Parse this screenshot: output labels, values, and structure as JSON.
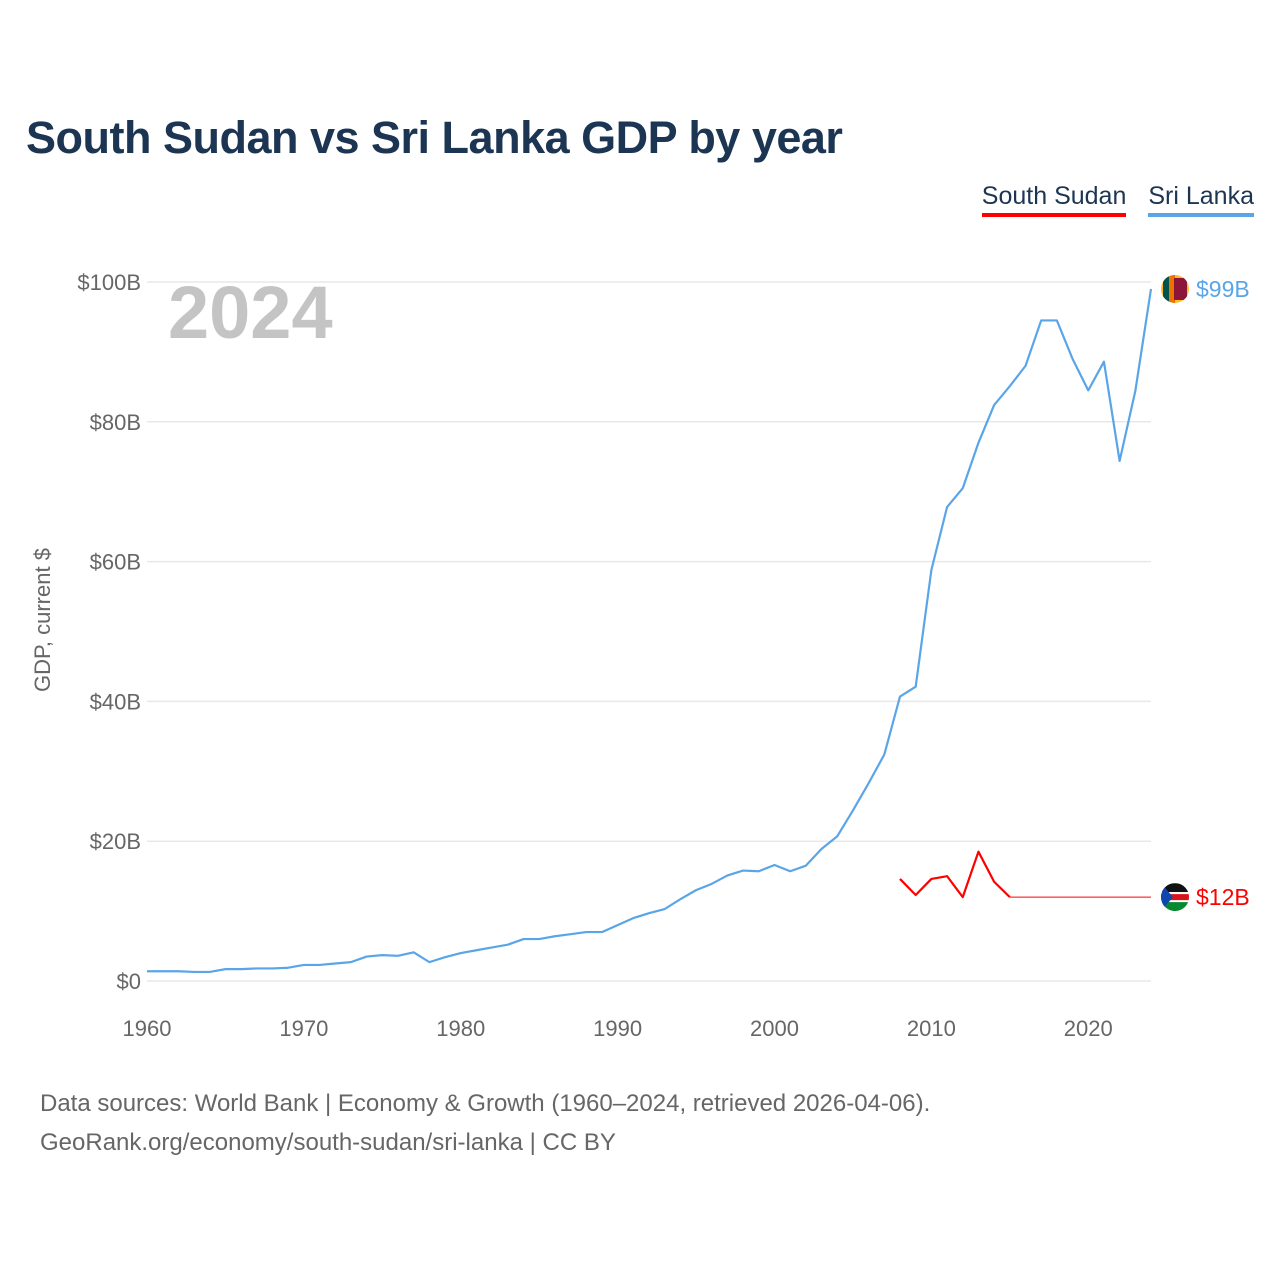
{
  "title": "South Sudan vs Sri Lanka GDP by year",
  "footer": {
    "line1": "Data sources: World Bank | Economy & Growth (1960–2024, retrieved 2026-04-06).",
    "line2": "GeoRank.org/economy/south-sudan/sri-lanka | CC BY"
  },
  "chart_data": {
    "type": "line",
    "title": "South Sudan vs Sri Lanka GDP by year",
    "xlabel": "",
    "ylabel": "GDP, current $",
    "year_label": "2024",
    "xlim": [
      1960,
      2024
    ],
    "ylim": [
      0,
      100
    ],
    "x_ticks": [
      1960,
      1970,
      1980,
      1990,
      2000,
      2010,
      2020
    ],
    "y_ticks": [
      0,
      20,
      40,
      60,
      80,
      100
    ],
    "y_tick_labels": [
      "$0",
      "$20B",
      "$40B",
      "$60B",
      "$80B",
      "$100B"
    ],
    "grid": true,
    "legend_position": "top-right",
    "units": "billion USD",
    "series": [
      {
        "name": "South Sudan",
        "color": "#ff0000",
        "end_label": "$12B",
        "flag": "south-sudan-flag",
        "x": [
          2008,
          2009,
          2010,
          2011,
          2012,
          2013,
          2014,
          2015
        ],
        "values": [
          14.6,
          12.3,
          14.6,
          15.0,
          12.0,
          18.5,
          14.2,
          12.0
        ],
        "carried_to": 2024
      },
      {
        "name": "Sri Lanka",
        "color": "#5aa5e8",
        "end_label": "$99B",
        "flag": "sri-lanka-flag",
        "x": [
          1960,
          1961,
          1962,
          1963,
          1964,
          1965,
          1966,
          1967,
          1968,
          1969,
          1970,
          1971,
          1972,
          1973,
          1974,
          1975,
          1976,
          1977,
          1978,
          1979,
          1980,
          1981,
          1982,
          1983,
          1984,
          1985,
          1986,
          1987,
          1988,
          1989,
          1990,
          1991,
          1992,
          1993,
          1994,
          1995,
          1996,
          1997,
          1998,
          1999,
          2000,
          2001,
          2002,
          2003,
          2004,
          2005,
          2006,
          2007,
          2008,
          2009,
          2010,
          2011,
          2012,
          2013,
          2014,
          2015,
          2016,
          2017,
          2018,
          2019,
          2020,
          2021,
          2022,
          2023,
          2024
        ],
        "values": [
          1.4,
          1.4,
          1.4,
          1.3,
          1.3,
          1.7,
          1.7,
          1.8,
          1.8,
          1.9,
          2.3,
          2.3,
          2.5,
          2.7,
          3.5,
          3.7,
          3.6,
          4.1,
          2.7,
          3.4,
          4.0,
          4.4,
          4.8,
          5.2,
          6.0,
          6.0,
          6.4,
          6.7,
          7.0,
          7.0,
          8.0,
          9.0,
          9.7,
          10.3,
          11.7,
          13.0,
          13.9,
          15.1,
          15.8,
          15.7,
          16.6,
          15.7,
          16.5,
          18.9,
          20.7,
          24.4,
          28.3,
          32.4,
          40.7,
          42.1,
          58.8,
          67.8,
          70.5,
          77.0,
          82.4,
          85.1,
          88.0,
          94.5,
          94.5,
          89.0,
          84.5,
          88.6,
          74.4,
          84.4,
          99.0
        ]
      }
    ]
  }
}
